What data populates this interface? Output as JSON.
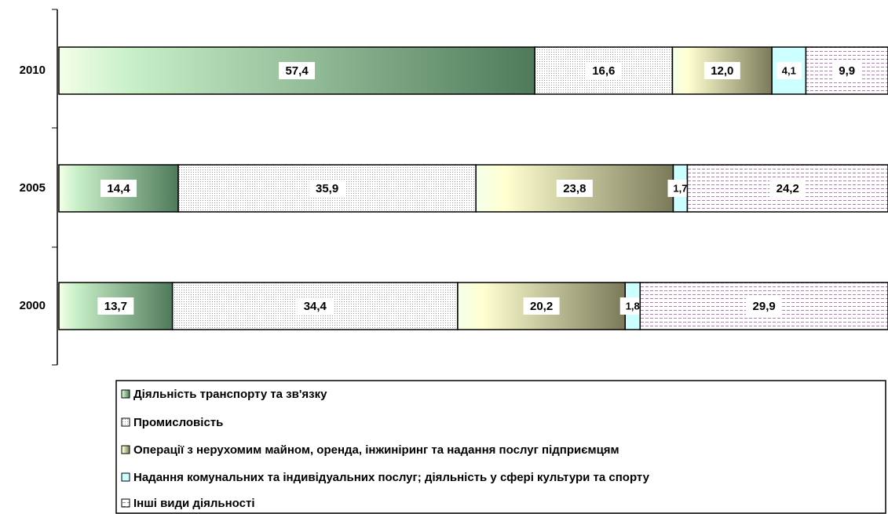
{
  "chart_data": {
    "type": "bar",
    "orientation": "horizontal",
    "stacked": true,
    "categories": [
      "2010",
      "2005",
      "2000"
    ],
    "xlim": [
      0,
      100
    ],
    "series": [
      {
        "name": "Діяльність транспорту та зв'язку",
        "color": "#4f7a5a",
        "fill": "gradient",
        "values": [
          57.4,
          14.4,
          13.7
        ],
        "value_labels": [
          "57,4",
          "14,4",
          "13,7"
        ]
      },
      {
        "name": "Промисловість",
        "color": "#9a9a9a",
        "fill": "dots",
        "values": [
          16.6,
          35.9,
          34.4
        ],
        "value_labels": [
          "16,6",
          "35,9",
          "34,4"
        ]
      },
      {
        "name": "Операції з нерухомим майном, оренда, інжиніринг та надання послуг підприємцям",
        "color": "#7a7a5a",
        "fill": "gradient",
        "values": [
          12.0,
          23.8,
          20.2
        ],
        "value_labels": [
          "12,0",
          "23,8",
          "20,2"
        ]
      },
      {
        "name": "Надання комунальних та індивідуальних послуг; діяльність у сфері культури та спорту",
        "color": "#ccffff",
        "fill": "solid",
        "values": [
          4.1,
          1.7,
          1.8
        ],
        "value_labels": [
          "4,1",
          "1,7",
          "1,8"
        ]
      },
      {
        "name": "Інші види діяльності",
        "color": "#b080b0",
        "fill": "dashes",
        "values": [
          9.9,
          24.2,
          29.9
        ],
        "value_labels": [
          "9,9",
          "24,2",
          "29,9"
        ]
      }
    ]
  }
}
